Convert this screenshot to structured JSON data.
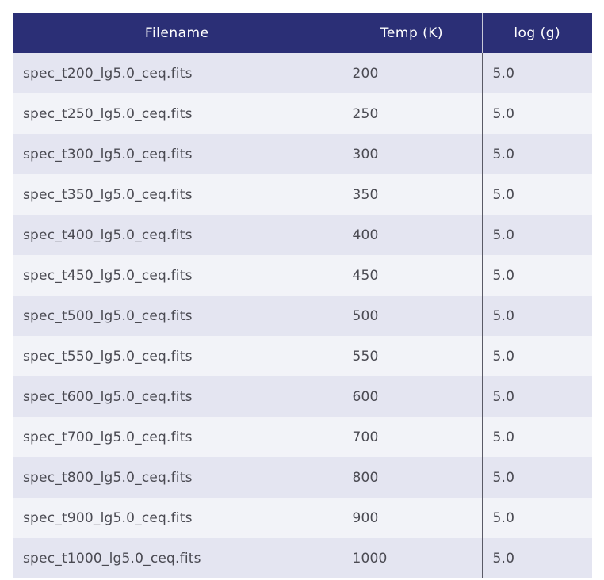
{
  "table": {
    "columns": [
      "Filename",
      "Temp (K)",
      "log (g)"
    ],
    "rows": [
      [
        "spec_t200_lg5.0_ceq.fits",
        "200",
        "5.0"
      ],
      [
        "spec_t250_lg5.0_ceq.fits",
        "250",
        "5.0"
      ],
      [
        "spec_t300_lg5.0_ceq.fits",
        "300",
        "5.0"
      ],
      [
        "spec_t350_lg5.0_ceq.fits",
        "350",
        "5.0"
      ],
      [
        "spec_t400_lg5.0_ceq.fits",
        "400",
        "5.0"
      ],
      [
        "spec_t450_lg5.0_ceq.fits",
        "450",
        "5.0"
      ],
      [
        "spec_t500_lg5.0_ceq.fits",
        "500",
        "5.0"
      ],
      [
        "spec_t550_lg5.0_ceq.fits",
        "550",
        "5.0"
      ],
      [
        "spec_t600_lg5.0_ceq.fits",
        "600",
        "5.0"
      ],
      [
        "spec_t700_lg5.0_ceq.fits",
        "700",
        "5.0"
      ],
      [
        "spec_t800_lg5.0_ceq.fits",
        "800",
        "5.0"
      ],
      [
        "spec_t900_lg5.0_ceq.fits",
        "900",
        "5.0"
      ],
      [
        "spec_t1000_lg5.0_ceq.fits",
        "1000",
        "5.0"
      ]
    ]
  },
  "colors": {
    "header_bg": "#2b2f76",
    "header_text": "#ffffff",
    "row_odd": "#e4e5f1",
    "row_even": "#f2f3f8",
    "cell_text": "#4a4a52"
  }
}
